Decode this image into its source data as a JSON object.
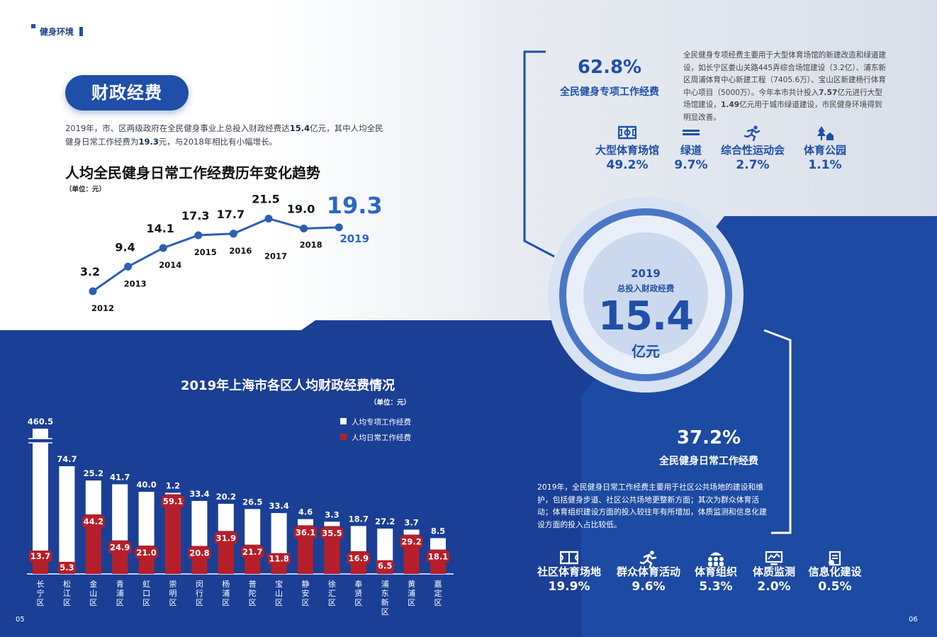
{
  "section_tag": "健身环境",
  "pill_title": "财政经费",
  "intro": {
    "p1": "2019年，市、区两级政府在全民健身事业上总投入财政经费达",
    "b1": "15.4",
    "p2": "亿元，其中人均全民健身日常工作经费为",
    "b2": "19.3",
    "p3": "元，与2018年相比有小幅增长。"
  },
  "trend": {
    "title": "人均全民健身日常工作经费历年变化趋势",
    "unit": "（单位：元）"
  },
  "bar_section": {
    "title": "2019年上海市各区人均财政经费情况",
    "unit": "（单位：元）"
  },
  "center": {
    "year": "2019",
    "label": "总投入财政经费",
    "value": "15.4",
    "unit": "亿元"
  },
  "special": {
    "pct": "62.8%",
    "label": "全民健身专项工作经费",
    "para_1": "全民健身专项经费主要用于大型体育场馆的新建改造和绿道建设，如长宁区娄山关路445弄综合场馆建设（3.2亿）、浦东新区周浦体育中心新建工程（7405.6万）、宝山区新建杨行体育中心项目（5000万）。今年本市共计投入",
    "para_b1": "7.57",
    "para_2": "亿元进行大型场馆建设，",
    "para_b2": "1.49",
    "para_3": "亿元用于城市绿道建设，市民健身环境得到明显改善。",
    "items": [
      {
        "label": "大型体育场馆",
        "pct": "49.2%",
        "icon": "stadium-icon"
      },
      {
        "label": "绿道",
        "pct": "9.7%",
        "icon": "greenway-icon"
      },
      {
        "label": "综合性运动会",
        "pct": "2.7%",
        "icon": "runner-icon"
      },
      {
        "label": "体育公园",
        "pct": "1.1%",
        "icon": "park-icon"
      }
    ]
  },
  "daily": {
    "pct": "37.2%",
    "label": "全民健身日常工作经费",
    "para": "2019年，全民健身日常工作经费主要用于社区公共场地的建设和维护，包括健身步道、社区公共场地更整新方面；其次为群众体育活动；体育组织建设方面的投入较往年有所增加，体质监测和信息化建设方面的投入占比较低。",
    "items": [
      {
        "label": "社区体育场地",
        "pct": "19.9%",
        "icon": "court-icon"
      },
      {
        "label": "群众体育活动",
        "pct": "9.6%",
        "icon": "running-icon"
      },
      {
        "label": "体育组织",
        "pct": "5.3%",
        "icon": "organization-icon"
      },
      {
        "label": "体质监测",
        "pct": "2.0%",
        "icon": "monitor-icon"
      },
      {
        "label": "信息化建设",
        "pct": "0.5%",
        "icon": "info-icon"
      }
    ]
  },
  "pages": {
    "left": "05",
    "right": "06"
  },
  "colors": {
    "primary": "#1f4fa8",
    "dark": "#1a3f95",
    "red": "#b61f2a",
    "white": "#ffffff"
  },
  "chart_data": [
    {
      "type": "line",
      "title": "人均全民健身日常工作经费历年变化趋势",
      "unit": "（单位：元）",
      "x": [
        "2012",
        "2013",
        "2014",
        "2015",
        "2016",
        "2017",
        "2018",
        "2019"
      ],
      "values": [
        3.2,
        9.4,
        14.1,
        17.3,
        17.7,
        21.5,
        19.0,
        19.3
      ],
      "highlight_last": true,
      "ylim": [
        0,
        25
      ]
    },
    {
      "type": "bar",
      "stacked": true,
      "title": "2019年上海市各区人均财政经费情况",
      "unit": "（单位：元）",
      "legend_position": "top-right",
      "categories": [
        "长宁区",
        "松江区",
        "金山区",
        "青浦区",
        "虹口区",
        "崇明区",
        "闵行区",
        "杨浦区",
        "普陀区",
        "宝山区",
        "静安区",
        "徐汇区",
        "奉贤区",
        "浦东新区",
        "黄浦区",
        "嘉定区"
      ],
      "series": [
        {
          "name": "人均日常工作经费",
          "color": "#b61f2a",
          "values": [
            13.7,
            5.3,
            44.2,
            24.9,
            21.0,
            59.1,
            20.8,
            31.9,
            21.7,
            11.8,
            36.1,
            35.5,
            16.9,
            6.5,
            29.2,
            18.1
          ]
        },
        {
          "name": "人均专项工作经费",
          "color": "#ffffff",
          "values": [
            460.5,
            74.7,
            25.2,
            41.7,
            40.0,
            1.2,
            33.4,
            20.2,
            26.5,
            33.4,
            4.6,
            3.3,
            18.7,
            27.2,
            3.7,
            8.5
          ]
        }
      ],
      "ylim": [
        0,
        90
      ],
      "axis_break": true
    }
  ]
}
